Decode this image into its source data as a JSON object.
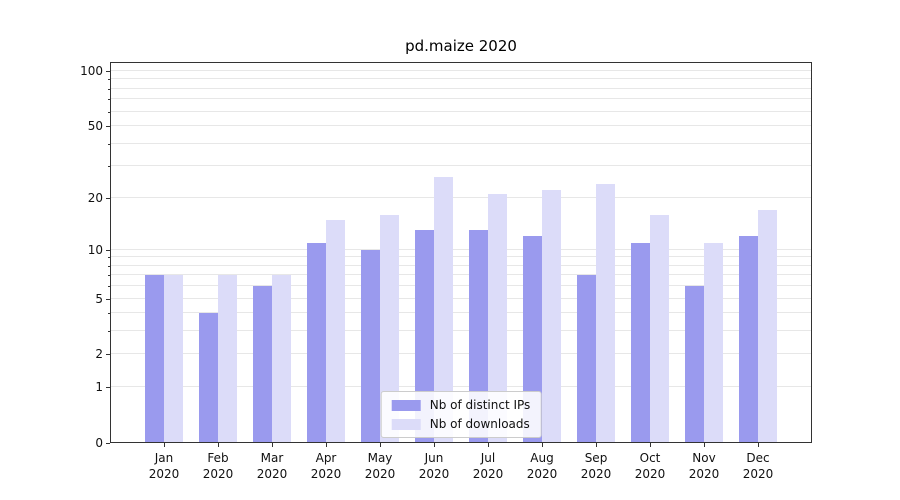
{
  "figure": {
    "background": "#ffffff"
  },
  "chart_data": {
    "type": "bar",
    "title": "pd.maize 2020",
    "categories": [
      "Jan 2020",
      "Feb 2020",
      "Mar 2020",
      "Apr 2020",
      "May 2020",
      "Jun 2020",
      "Jul 2020",
      "Aug 2020",
      "Sep 2020",
      "Oct 2020",
      "Nov 2020",
      "Dec 2020"
    ],
    "series": [
      {
        "name": "Nb of distinct IPs",
        "color": "#9a9aee",
        "values": [
          7,
          4,
          6,
          11,
          10,
          13,
          13,
          12,
          7,
          11,
          6,
          12
        ]
      },
      {
        "name": "Nb of downloads",
        "color": "#dcdcf9",
        "values": [
          7,
          7,
          7,
          15,
          16,
          26,
          21,
          22,
          24,
          16,
          11,
          17
        ]
      }
    ],
    "yscale": "log1p",
    "ylim": [
      0,
      112
    ],
    "yticks": [
      0,
      1,
      2,
      5,
      10,
      20,
      50,
      100
    ],
    "gridlines": [
      1,
      2,
      3,
      4,
      5,
      6,
      7,
      8,
      9,
      10,
      20,
      30,
      40,
      50,
      60,
      70,
      80,
      90,
      100
    ],
    "grid_on": true,
    "grid_color": "#e7e7e7",
    "spine_color": "#333333",
    "text_color": "#111111",
    "legend_position": "lower center",
    "xlabel": "",
    "ylabel": ""
  }
}
